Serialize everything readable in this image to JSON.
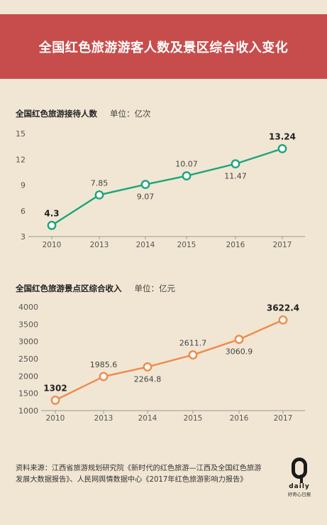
{
  "header": {
    "title": "全国红色旅游游客人数及景区综合收入变化"
  },
  "chart_data": [
    {
      "type": "line",
      "title": "全国红色旅游接待人数",
      "unit_label": "单位：亿次",
      "categories": [
        "2010",
        "2013",
        "2014",
        "2015",
        "2016",
        "2017"
      ],
      "values": [
        4.3,
        7.85,
        9.07,
        10.07,
        11.47,
        13.24
      ],
      "value_labels": [
        "4.3",
        "7.85",
        "9.07",
        "10.07",
        "11.47",
        "13.24"
      ],
      "label_positions": [
        "above",
        "above",
        "below",
        "above",
        "below",
        "above"
      ],
      "label_bold": [
        true,
        false,
        false,
        false,
        false,
        true
      ],
      "yticks": [
        "3",
        "6",
        "9",
        "12",
        "15"
      ],
      "ylim": [
        3,
        15
      ],
      "color": "#1aa67a"
    },
    {
      "type": "line",
      "title": "全国红色旅游景点区综合收入",
      "unit_label": "单位：亿元",
      "categories": [
        "2010",
        "2013",
        "2014",
        "2015",
        "2016",
        "2017"
      ],
      "values": [
        1302,
        1985.6,
        2264.8,
        2611.7,
        3060.9,
        3622.4
      ],
      "value_labels": [
        "1302",
        "1985.6",
        "2264.8",
        "2611.7",
        "3060.9",
        "3622.4"
      ],
      "label_positions": [
        "above",
        "above",
        "below",
        "above",
        "below",
        "above"
      ],
      "label_bold": [
        true,
        false,
        false,
        false,
        false,
        true
      ],
      "yticks": [
        "1000",
        "1500",
        "2000",
        "2500",
        "3000",
        "3500",
        "4000"
      ],
      "ylim": [
        1000,
        4000
      ],
      "color": "#f08a4b"
    }
  ],
  "footer": {
    "source_line1": "资料来源：江西省旅游规划研究院《新时代的红色旅游—江西及全国红色旅游",
    "source_line2": "发展大数据报告》、人民网舆情数据中心《2017年红色旅游影响力报告》",
    "logo_letter": "Q",
    "logo_text": "daily",
    "logo_cn": "好奇心日报"
  }
}
